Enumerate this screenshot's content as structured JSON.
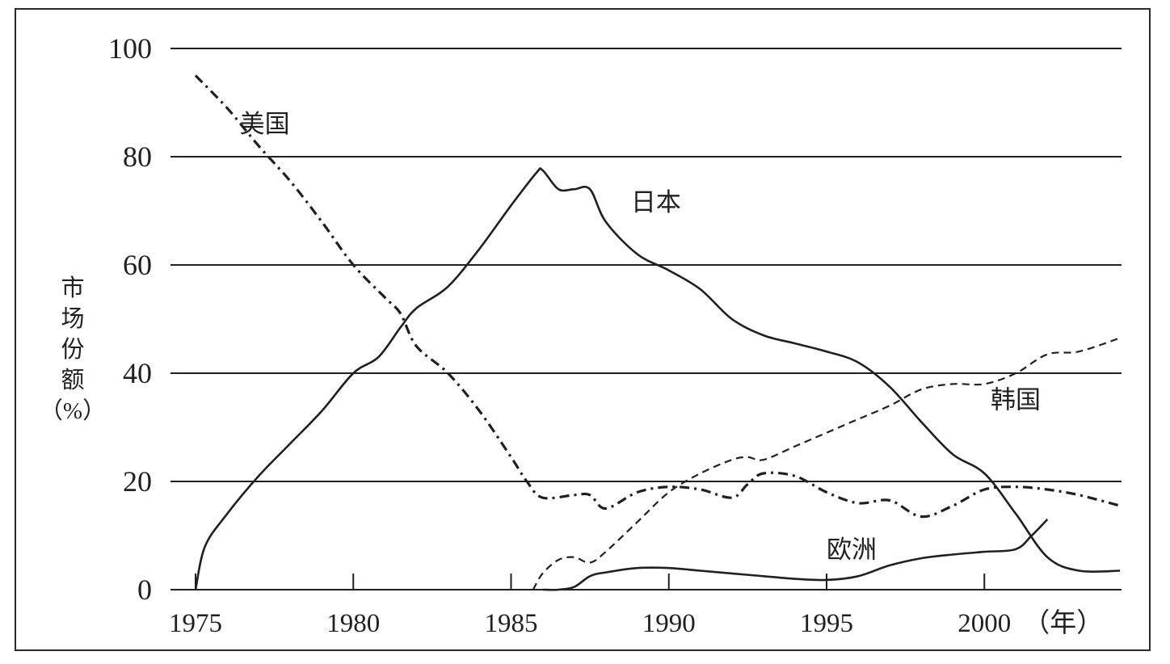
{
  "chart_data": {
    "type": "line",
    "title": "",
    "ylabel": "市场份额（%）",
    "ylabel_chars": [
      "市",
      "场",
      "份",
      "额",
      "（%）"
    ],
    "x_unit_label": "（年）",
    "xlim": [
      1975,
      2004.3
    ],
    "ylim": [
      0,
      100
    ],
    "y_ticks": [
      "0",
      "20",
      "40",
      "60",
      "80",
      "100"
    ],
    "x_ticks": [
      "1975",
      "1980",
      "1985",
      "1990",
      "1995",
      "2000"
    ],
    "grid": "horizontal",
    "legend": "none",
    "series": [
      {
        "name": "美国",
        "style": "dashdot",
        "x": [
          1975,
          1976,
          1977,
          1978,
          1979,
          1980,
          1981,
          1981.5,
          1982,
          1983,
          1984,
          1985,
          1985.5,
          1986,
          1987,
          1987.5,
          1988,
          1989,
          1990,
          1991,
          1992,
          1992.5,
          1993,
          1994,
          1995,
          1996,
          1997,
          1998,
          1999,
          2000,
          2001,
          2002,
          2003,
          2004.3
        ],
        "values": [
          95,
          89,
          82,
          75.5,
          68,
          60,
          54,
          51,
          45,
          40,
          33,
          24.5,
          20,
          17,
          17.5,
          17.5,
          15,
          18,
          19,
          18.5,
          17,
          19.5,
          21.5,
          21,
          18,
          16,
          16.5,
          13.5,
          15.5,
          18.5,
          19,
          18.5,
          17.5,
          15.5
        ]
      },
      {
        "name": "日本",
        "style": "solid",
        "x": [
          1975,
          1975.3,
          1976,
          1977,
          1978,
          1979,
          1980,
          1980.8,
          1981.5,
          1982,
          1983,
          1984,
          1985,
          1985.8,
          1986,
          1986.5,
          1987,
          1987.5,
          1988,
          1989,
          1990,
          1991,
          1992,
          1993,
          1994,
          1995,
          1996,
          1997,
          1998,
          1999,
          2000,
          2001,
          2002,
          2003,
          2004.3
        ],
        "values": [
          0,
          8,
          14,
          21,
          27,
          33,
          40,
          43,
          48.5,
          52,
          56,
          63,
          71,
          77,
          77.5,
          74,
          74,
          74,
          68,
          62,
          59,
          55.5,
          50,
          47,
          45.5,
          44,
          42,
          37.5,
          31,
          25,
          21.5,
          14,
          6,
          3.5,
          3.5
        ]
      },
      {
        "name": "韩国",
        "style": "dashed",
        "x": [
          1985.7,
          1986,
          1986.5,
          1987,
          1987.5,
          1988,
          1989,
          1990,
          1991,
          1992,
          1992.5,
          1993,
          1994,
          1995,
          1996,
          1997,
          1998,
          1999,
          2000,
          2001,
          2002,
          2003,
          2004.3
        ],
        "values": [
          0,
          3,
          5.5,
          6,
          5,
          7,
          12.5,
          18,
          21.5,
          24,
          24.5,
          24,
          26.5,
          29,
          31.5,
          34,
          37,
          38,
          38,
          40,
          43.5,
          44,
          46.5
        ]
      },
      {
        "name": "欧洲",
        "style": "solid",
        "x": [
          1986,
          1986.5,
          1987,
          1987.5,
          1988,
          1989,
          1990,
          1991,
          1992,
          1993,
          1994,
          1995,
          1996,
          1997,
          1998,
          1999,
          2000,
          2001,
          2001.5,
          2002
        ],
        "values": [
          0,
          0,
          0.5,
          2.5,
          3.2,
          4,
          4,
          3.5,
          3,
          2.5,
          2,
          1.8,
          2.5,
          4.5,
          5.8,
          6.5,
          7,
          7.5,
          10,
          13
        ]
      }
    ]
  }
}
